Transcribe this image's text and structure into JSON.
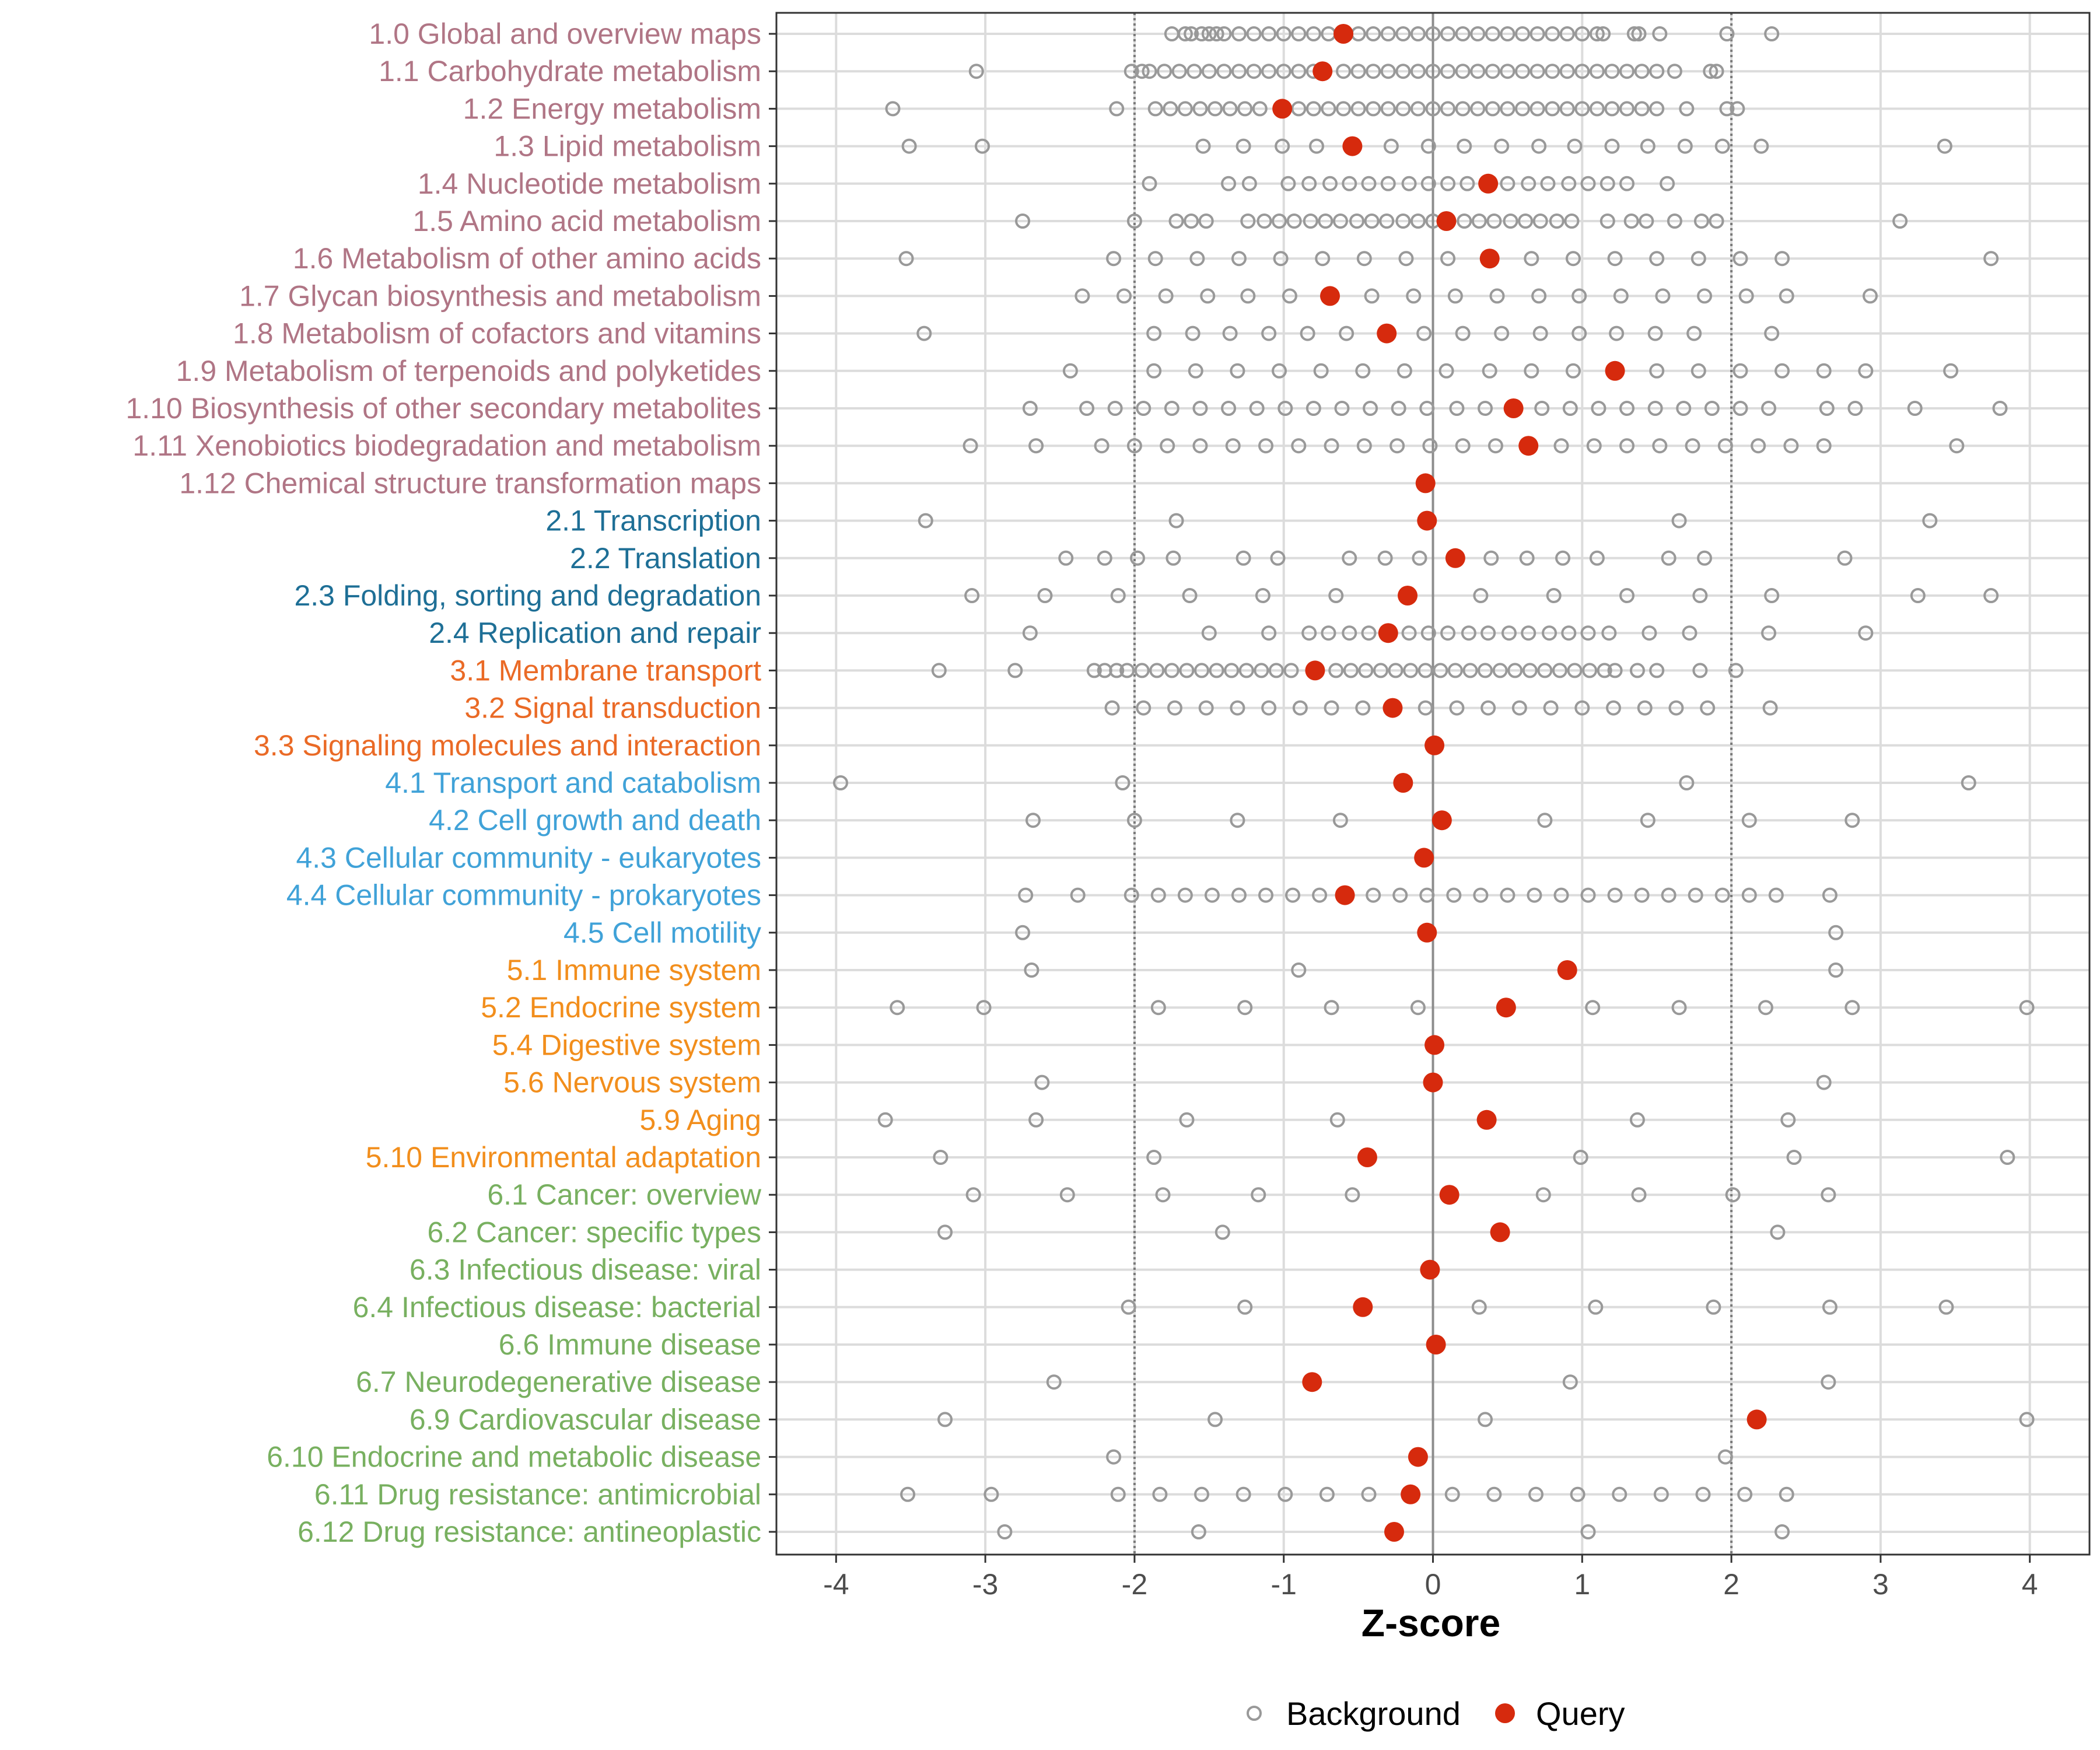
{
  "chart_data": {
    "type": "scatter",
    "xlabel": "Z-score",
    "xlim": [
      -4.4,
      4.4
    ],
    "xticks": [
      -4,
      -3,
      -2,
      -1,
      0,
      1,
      2,
      3,
      4
    ],
    "xtick_labels": [
      "-4",
      "-3",
      "-2",
      "-1",
      "0",
      "1",
      "2",
      "3",
      "4"
    ],
    "reference_lines": [
      -2,
      2
    ],
    "zero_line": 0,
    "grid": true,
    "legend": {
      "placement": "bottom",
      "items": [
        {
          "name": "Background",
          "marker": "open-circle",
          "color": "#999999"
        },
        {
          "name": "Query",
          "marker": "filled-circle",
          "color": "#d62a0d"
        }
      ]
    },
    "group_colors": {
      "1": "#b07585",
      "2": "#1e6f96",
      "3": "#ea6a26",
      "4": "#40a2d8",
      "5": "#f28e1c",
      "6": "#78b060"
    },
    "categories": [
      {
        "label": "1.0 Global and overview maps",
        "group": "1",
        "query": -0.6,
        "background": [
          -1.75,
          -1.66,
          -1.62,
          -1.55,
          -1.5,
          -1.45,
          -1.4,
          -1.3,
          -1.2,
          -1.1,
          -1.0,
          -0.9,
          -0.8,
          -0.7,
          -0.5,
          -0.4,
          -0.3,
          -0.2,
          -0.1,
          0.0,
          0.1,
          0.2,
          0.3,
          0.4,
          0.5,
          0.6,
          0.7,
          0.8,
          0.9,
          1.0,
          1.1,
          1.14,
          1.35,
          1.38,
          1.52,
          1.97,
          2.27
        ]
      },
      {
        "label": "1.1 Carbohydrate metabolism",
        "group": "1",
        "query": -0.74,
        "background": [
          -3.06,
          -2.02,
          -1.95,
          -1.9,
          -1.8,
          -1.7,
          -1.6,
          -1.5,
          -1.4,
          -1.3,
          -1.2,
          -1.1,
          -1.0,
          -0.9,
          -0.8,
          -0.6,
          -0.5,
          -0.4,
          -0.3,
          -0.2,
          -0.1,
          0.0,
          0.1,
          0.2,
          0.3,
          0.4,
          0.5,
          0.6,
          0.7,
          0.8,
          0.9,
          1.0,
          1.1,
          1.2,
          1.3,
          1.4,
          1.5,
          1.62,
          1.86,
          1.9
        ]
      },
      {
        "label": "1.2 Energy metabolism",
        "group": "1",
        "query": -1.01,
        "background": [
          -3.62,
          -2.12,
          -1.86,
          -1.76,
          -1.66,
          -1.56,
          -1.46,
          -1.36,
          -1.26,
          -1.16,
          -0.9,
          -0.8,
          -0.7,
          -0.6,
          -0.5,
          -0.4,
          -0.3,
          -0.2,
          -0.1,
          0.0,
          0.1,
          0.2,
          0.3,
          0.4,
          0.5,
          0.6,
          0.7,
          0.8,
          0.9,
          1.0,
          1.1,
          1.2,
          1.3,
          1.4,
          1.5,
          1.7,
          1.97,
          2.04
        ]
      },
      {
        "label": "1.3 Lipid metabolism",
        "group": "1",
        "query": -0.54,
        "background": [
          -3.51,
          -3.02,
          -1.54,
          -1.27,
          -1.01,
          -0.78,
          -0.28,
          -0.03,
          0.21,
          0.46,
          0.71,
          0.95,
          1.2,
          1.44,
          1.69,
          1.94,
          2.2,
          3.43
        ]
      },
      {
        "label": "1.4 Nucleotide metabolism",
        "group": "1",
        "query": 0.37,
        "background": [
          -1.9,
          -1.37,
          -1.23,
          -0.97,
          -0.83,
          -0.69,
          -0.56,
          -0.43,
          -0.3,
          -0.16,
          -0.03,
          0.1,
          0.23,
          0.5,
          0.64,
          0.77,
          0.91,
          1.04,
          1.17,
          1.3,
          1.57
        ]
      },
      {
        "label": "1.5 Amino acid metabolism",
        "group": "1",
        "query": 0.09,
        "background": [
          -2.75,
          -2.0,
          -1.72,
          -1.62,
          -1.52,
          -1.24,
          -1.13,
          -1.03,
          -0.93,
          -0.82,
          -0.72,
          -0.62,
          -0.51,
          -0.41,
          -0.31,
          -0.2,
          -0.1,
          0.0,
          0.21,
          0.31,
          0.41,
          0.52,
          0.62,
          0.72,
          0.83,
          0.93,
          1.17,
          1.33,
          1.43,
          1.62,
          1.8,
          1.9,
          3.13
        ]
      },
      {
        "label": "1.6 Metabolism of other amino acids",
        "group": "1",
        "query": 0.38,
        "background": [
          -3.53,
          -2.14,
          -1.86,
          -1.58,
          -1.3,
          -1.02,
          -0.74,
          -0.46,
          -0.18,
          0.1,
          0.66,
          0.94,
          1.22,
          1.5,
          1.78,
          2.06,
          2.34,
          3.74
        ]
      },
      {
        "label": "1.7 Glycan biosynthesis and metabolism",
        "group": "1",
        "query": -0.69,
        "background": [
          -2.35,
          -2.07,
          -1.79,
          -1.51,
          -1.24,
          -0.96,
          -0.41,
          -0.13,
          0.15,
          0.43,
          0.71,
          0.98,
          1.26,
          1.54,
          1.82,
          2.1,
          2.37,
          2.93
        ]
      },
      {
        "label": "1.8 Metabolism of cofactors and vitamins",
        "group": "1",
        "query": -0.31,
        "background": [
          -3.41,
          -1.87,
          -1.61,
          -1.36,
          -1.1,
          -0.84,
          -0.58,
          -0.06,
          0.2,
          0.46,
          0.72,
          0.98,
          1.23,
          1.49,
          1.75,
          2.27
        ]
      },
      {
        "label": "1.9 Metabolism of terpenoids and polyketides",
        "group": "1",
        "query": 1.22,
        "background": [
          -2.43,
          -1.87,
          -1.59,
          -1.31,
          -1.03,
          -0.75,
          -0.47,
          -0.19,
          0.09,
          0.38,
          0.66,
          0.94,
          1.5,
          1.78,
          2.06,
          2.34,
          2.62,
          2.9,
          3.47
        ]
      },
      {
        "label": "1.10 Biosynthesis of other secondary metabolites",
        "group": "1",
        "query": 0.54,
        "background": [
          -2.7,
          -2.32,
          -2.13,
          -1.94,
          -1.75,
          -1.56,
          -1.37,
          -1.18,
          -0.99,
          -0.8,
          -0.61,
          -0.42,
          -0.23,
          -0.04,
          0.16,
          0.35,
          0.73,
          0.92,
          1.11,
          1.3,
          1.49,
          1.68,
          1.87,
          2.06,
          2.25,
          2.64,
          2.83,
          3.23,
          3.8
        ]
      },
      {
        "label": "1.11 Xenobiotics biodegradation and metabolism",
        "group": "1",
        "query": 0.64,
        "background": [
          -3.1,
          -2.66,
          -2.22,
          -2.0,
          -1.78,
          -1.56,
          -1.34,
          -1.12,
          -0.9,
          -0.68,
          -0.46,
          -0.24,
          -0.02,
          0.2,
          0.42,
          0.86,
          1.08,
          1.3,
          1.52,
          1.74,
          1.96,
          2.18,
          2.4,
          2.62,
          3.51
        ]
      },
      {
        "label": "1.12 Chemical structure transformation maps",
        "group": "1",
        "query": -0.05,
        "background": []
      },
      {
        "label": "2.1 Transcription",
        "group": "2",
        "query": -0.04,
        "background": [
          -3.4,
          -1.72,
          1.65,
          3.33
        ]
      },
      {
        "label": "2.2 Translation",
        "group": "2",
        "query": 0.15,
        "background": [
          -2.46,
          -2.2,
          -1.98,
          -1.74,
          -1.27,
          -1.04,
          -0.56,
          -0.32,
          -0.09,
          0.39,
          0.63,
          0.87,
          1.1,
          1.58,
          1.82,
          2.76
        ]
      },
      {
        "label": "2.3 Folding, sorting and degradation",
        "group": "2",
        "query": -0.17,
        "background": [
          -3.09,
          -2.6,
          -2.11,
          -1.63,
          -1.14,
          -0.65,
          0.32,
          0.81,
          1.3,
          1.79,
          2.27,
          3.25,
          3.74
        ]
      },
      {
        "label": "2.4 Replication and repair",
        "group": "2",
        "query": -0.3,
        "background": [
          -2.7,
          -1.5,
          -1.1,
          -0.83,
          -0.7,
          -0.56,
          -0.43,
          -0.16,
          -0.03,
          0.1,
          0.24,
          0.37,
          0.51,
          0.64,
          0.78,
          0.91,
          1.04,
          1.18,
          1.45,
          1.72,
          2.25,
          2.9
        ]
      },
      {
        "label": "3.1 Membrane transport",
        "group": "3",
        "query": -0.79,
        "background": [
          -3.31,
          -2.8,
          -2.27,
          -2.2,
          -2.12,
          -2.05,
          -1.95,
          -1.85,
          -1.75,
          -1.65,
          -1.55,
          -1.45,
          -1.35,
          -1.25,
          -1.15,
          -1.05,
          -0.95,
          -0.65,
          -0.55,
          -0.45,
          -0.35,
          -0.25,
          -0.15,
          -0.05,
          0.05,
          0.15,
          0.25,
          0.35,
          0.45,
          0.55,
          0.65,
          0.75,
          0.85,
          0.95,
          1.05,
          1.15,
          1.22,
          1.37,
          1.5,
          1.79,
          2.03
        ]
      },
      {
        "label": "3.2 Signal transduction",
        "group": "3",
        "query": -0.27,
        "background": [
          -2.15,
          -1.94,
          -1.73,
          -1.52,
          -1.31,
          -1.1,
          -0.89,
          -0.68,
          -0.47,
          -0.05,
          0.16,
          0.37,
          0.58,
          0.79,
          1.0,
          1.21,
          1.42,
          1.63,
          1.84,
          2.26
        ]
      },
      {
        "label": "3.3 Signaling molecules and interaction",
        "group": "3",
        "query": 0.01,
        "background": []
      },
      {
        "label": "4.1 Transport and catabolism",
        "group": "4",
        "query": -0.2,
        "background": [
          -3.97,
          -2.08,
          1.7,
          3.59
        ]
      },
      {
        "label": "4.2 Cell growth and death",
        "group": "4",
        "query": 0.06,
        "background": [
          -2.68,
          -2.0,
          -1.31,
          -0.62,
          0.75,
          1.44,
          2.12,
          2.81
        ]
      },
      {
        "label": "4.3 Cellular community - eukaryotes",
        "group": "4",
        "query": -0.06,
        "background": []
      },
      {
        "label": "4.4 Cellular community - prokaryotes",
        "group": "4",
        "query": -0.59,
        "background": [
          -2.73,
          -2.38,
          -2.02,
          -1.84,
          -1.66,
          -1.48,
          -1.3,
          -1.12,
          -0.94,
          -0.76,
          -0.4,
          -0.22,
          -0.04,
          0.14,
          0.32,
          0.5,
          0.68,
          0.86,
          1.04,
          1.22,
          1.4,
          1.58,
          1.76,
          1.94,
          2.12,
          2.3,
          2.66
        ]
      },
      {
        "label": "4.5 Cell motility",
        "group": "4",
        "query": -0.04,
        "background": [
          -2.75,
          2.7
        ]
      },
      {
        "label": "5.1 Immune system",
        "group": "5",
        "query": 0.9,
        "background": [
          -2.69,
          -0.9,
          2.7
        ]
      },
      {
        "label": "5.2 Endocrine system",
        "group": "5",
        "query": 0.49,
        "background": [
          -3.59,
          -3.01,
          -1.84,
          -1.26,
          -0.68,
          -0.1,
          1.07,
          1.65,
          2.23,
          2.81,
          3.98
        ]
      },
      {
        "label": "5.4 Digestive system",
        "group": "5",
        "query": 0.01,
        "background": []
      },
      {
        "label": "5.6 Nervous system",
        "group": "5",
        "query": 0.0,
        "background": [
          -2.62,
          2.62
        ]
      },
      {
        "label": "5.9 Aging",
        "group": "5",
        "query": 0.36,
        "background": [
          -3.67,
          -2.66,
          -1.65,
          -0.64,
          1.37,
          2.38
        ]
      },
      {
        "label": "5.10 Environmental adaptation",
        "group": "5",
        "query": -0.44,
        "background": [
          -3.3,
          -1.87,
          0.99,
          2.42,
          3.85
        ]
      },
      {
        "label": "6.1 Cancer: overview",
        "group": "6",
        "query": 0.11,
        "background": [
          -3.08,
          -2.45,
          -1.81,
          -1.17,
          -0.54,
          0.74,
          1.38,
          2.01,
          2.65
        ]
      },
      {
        "label": "6.2 Cancer: specific types",
        "group": "6",
        "query": 0.45,
        "background": [
          -3.27,
          -1.41,
          2.31
        ]
      },
      {
        "label": "6.3 Infectious disease: viral",
        "group": "6",
        "query": -0.02,
        "background": []
      },
      {
        "label": "6.4 Infectious disease: bacterial",
        "group": "6",
        "query": -0.47,
        "background": [
          -2.04,
          -1.26,
          0.31,
          1.09,
          1.88,
          2.66,
          3.44
        ]
      },
      {
        "label": "6.6 Immune disease",
        "group": "6",
        "query": 0.02,
        "background": []
      },
      {
        "label": "6.7 Neurodegenerative disease",
        "group": "6",
        "query": -0.81,
        "background": [
          -2.54,
          0.92,
          2.65
        ]
      },
      {
        "label": "6.9 Cardiovascular disease",
        "group": "6",
        "query": 2.17,
        "background": [
          -3.27,
          -1.46,
          0.35,
          3.98
        ]
      },
      {
        "label": "6.10 Endocrine and metabolic disease",
        "group": "6",
        "query": -0.1,
        "background": [
          -2.14,
          1.96
        ]
      },
      {
        "label": "6.11 Drug resistance: antimicrobial",
        "group": "6",
        "query": -0.15,
        "background": [
          -3.52,
          -2.96,
          -2.11,
          -1.83,
          -1.55,
          -1.27,
          -0.99,
          -0.71,
          -0.43,
          0.13,
          0.41,
          0.69,
          0.97,
          1.25,
          1.53,
          1.81,
          2.09,
          2.37
        ]
      },
      {
        "label": "6.12 Drug resistance: antineoplastic",
        "group": "6",
        "query": -0.26,
        "background": [
          -2.87,
          -1.57,
          1.04,
          2.34
        ]
      }
    ]
  }
}
